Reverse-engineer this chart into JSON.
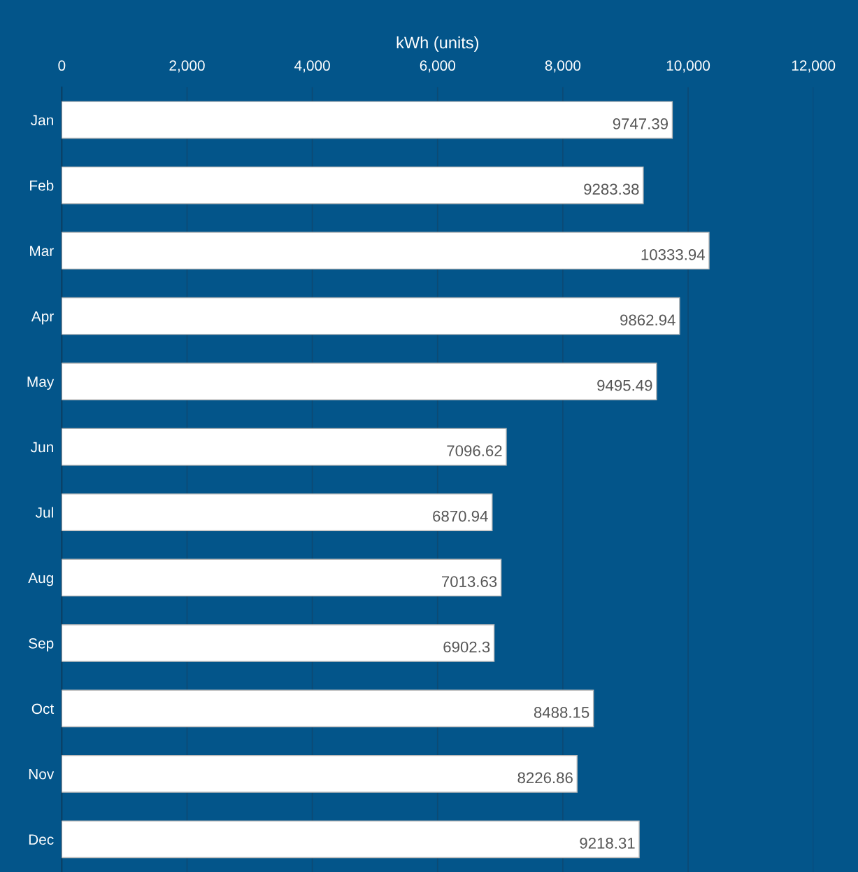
{
  "chart_data": {
    "type": "bar",
    "orientation": "horizontal",
    "xlabel": "kWh (units)",
    "categories": [
      "Jan",
      "Feb",
      "Mar",
      "Apr",
      "May",
      "Jun",
      "Jul",
      "Aug",
      "Sep",
      "Oct",
      "Nov",
      "Dec"
    ],
    "values": [
      9747.39,
      9283.38,
      10333.94,
      9862.94,
      9495.49,
      7096.62,
      6870.94,
      7013.63,
      6902.3,
      8488.15,
      8226.86,
      9218.31
    ],
    "color": "#ffffff",
    "xlim": [
      0,
      12000
    ],
    "xticks": [
      0,
      {
        "value": 2000,
        "label": "2,000"
      },
      {
        "value": 4000,
        "label": "4,000"
      },
      {
        "value": 6000,
        "label": "6,000"
      },
      {
        "value": 8000,
        "label": "8,000"
      },
      {
        "value": 10000,
        "label": "10,000"
      },
      {
        "value": 12000,
        "label": "12,000"
      }
    ],
    "grid": "x",
    "data_labels": true
  }
}
